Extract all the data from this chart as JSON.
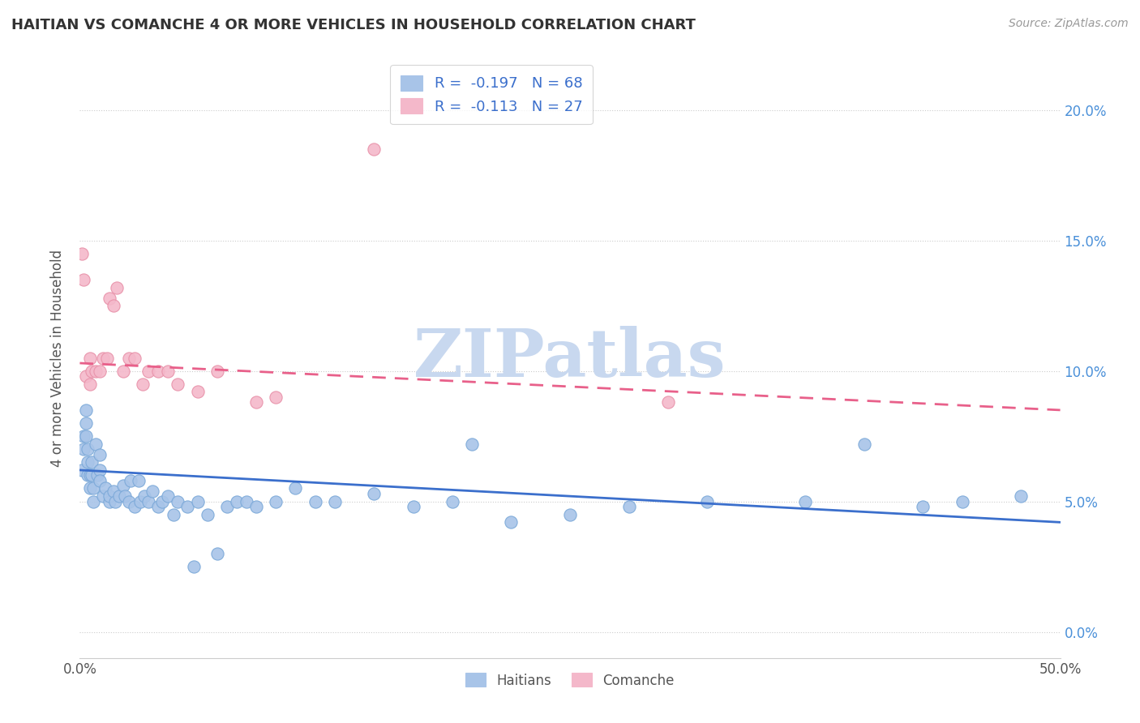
{
  "title": "HAITIAN VS COMANCHE 4 OR MORE VEHICLES IN HOUSEHOLD CORRELATION CHART",
  "source": "Source: ZipAtlas.com",
  "ylabel": "4 or more Vehicles in Household",
  "xlim": [
    0.0,
    0.5
  ],
  "ylim": [
    -0.01,
    0.22
  ],
  "xticks": [
    0.0,
    0.5
  ],
  "xticklabels": [
    "0.0%",
    "50.0%"
  ],
  "yticks_right": [
    0.0,
    0.05,
    0.1,
    0.15,
    0.2
  ],
  "yticklabels_right": [
    "0.0%",
    "5.0%",
    "10.0%",
    "15.0%",
    "20.0%"
  ],
  "grid_yticks": [
    0.0,
    0.05,
    0.1,
    0.15,
    0.2
  ],
  "haitian_color": "#a8c4e8",
  "comanche_color": "#f4b8ca",
  "haitian_edge_color": "#7aa8d8",
  "comanche_edge_color": "#e890a8",
  "haitian_line_color": "#3b6fcc",
  "comanche_line_color": "#e8608a",
  "R_haitian": -0.197,
  "N_haitian": 68,
  "R_comanche": -0.113,
  "N_comanche": 27,
  "watermark": "ZIPatlas",
  "watermark_color": "#c8d8ef",
  "legend_label_haitian": "Haitians",
  "legend_label_comanche": "Comanche",
  "haitian_x": [
    0.001,
    0.002,
    0.002,
    0.003,
    0.003,
    0.003,
    0.004,
    0.004,
    0.004,
    0.005,
    0.005,
    0.006,
    0.006,
    0.007,
    0.007,
    0.008,
    0.009,
    0.01,
    0.01,
    0.01,
    0.012,
    0.013,
    0.015,
    0.015,
    0.017,
    0.018,
    0.02,
    0.022,
    0.023,
    0.025,
    0.026,
    0.028,
    0.03,
    0.031,
    0.033,
    0.035,
    0.037,
    0.04,
    0.042,
    0.045,
    0.048,
    0.05,
    0.055,
    0.058,
    0.06,
    0.065,
    0.07,
    0.075,
    0.08,
    0.085,
    0.09,
    0.1,
    0.11,
    0.12,
    0.13,
    0.15,
    0.17,
    0.19,
    0.2,
    0.22,
    0.25,
    0.28,
    0.32,
    0.37,
    0.4,
    0.43,
    0.45,
    0.48
  ],
  "haitian_y": [
    0.062,
    0.075,
    0.07,
    0.08,
    0.075,
    0.085,
    0.07,
    0.065,
    0.06,
    0.055,
    0.06,
    0.06,
    0.065,
    0.055,
    0.05,
    0.072,
    0.06,
    0.068,
    0.062,
    0.058,
    0.052,
    0.055,
    0.05,
    0.052,
    0.054,
    0.05,
    0.052,
    0.056,
    0.052,
    0.05,
    0.058,
    0.048,
    0.058,
    0.05,
    0.052,
    0.05,
    0.054,
    0.048,
    0.05,
    0.052,
    0.045,
    0.05,
    0.048,
    0.025,
    0.05,
    0.045,
    0.03,
    0.048,
    0.05,
    0.05,
    0.048,
    0.05,
    0.055,
    0.05,
    0.05,
    0.053,
    0.048,
    0.05,
    0.072,
    0.042,
    0.045,
    0.048,
    0.05,
    0.05,
    0.072,
    0.048,
    0.05,
    0.052
  ],
  "comanche_x": [
    0.001,
    0.002,
    0.003,
    0.005,
    0.005,
    0.006,
    0.008,
    0.01,
    0.012,
    0.014,
    0.015,
    0.017,
    0.019,
    0.022,
    0.025,
    0.028,
    0.032,
    0.035,
    0.04,
    0.045,
    0.05,
    0.06,
    0.07,
    0.09,
    0.1,
    0.15,
    0.3
  ],
  "comanche_y": [
    0.145,
    0.135,
    0.098,
    0.105,
    0.095,
    0.1,
    0.1,
    0.1,
    0.105,
    0.105,
    0.128,
    0.125,
    0.132,
    0.1,
    0.105,
    0.105,
    0.095,
    0.1,
    0.1,
    0.1,
    0.095,
    0.092,
    0.1,
    0.088,
    0.09,
    0.185,
    0.088
  ],
  "haitian_line_x": [
    0.0,
    0.5
  ],
  "haitian_line_y": [
    0.062,
    0.042
  ],
  "comanche_line_x": [
    0.0,
    0.5
  ],
  "comanche_line_y": [
    0.103,
    0.085
  ]
}
